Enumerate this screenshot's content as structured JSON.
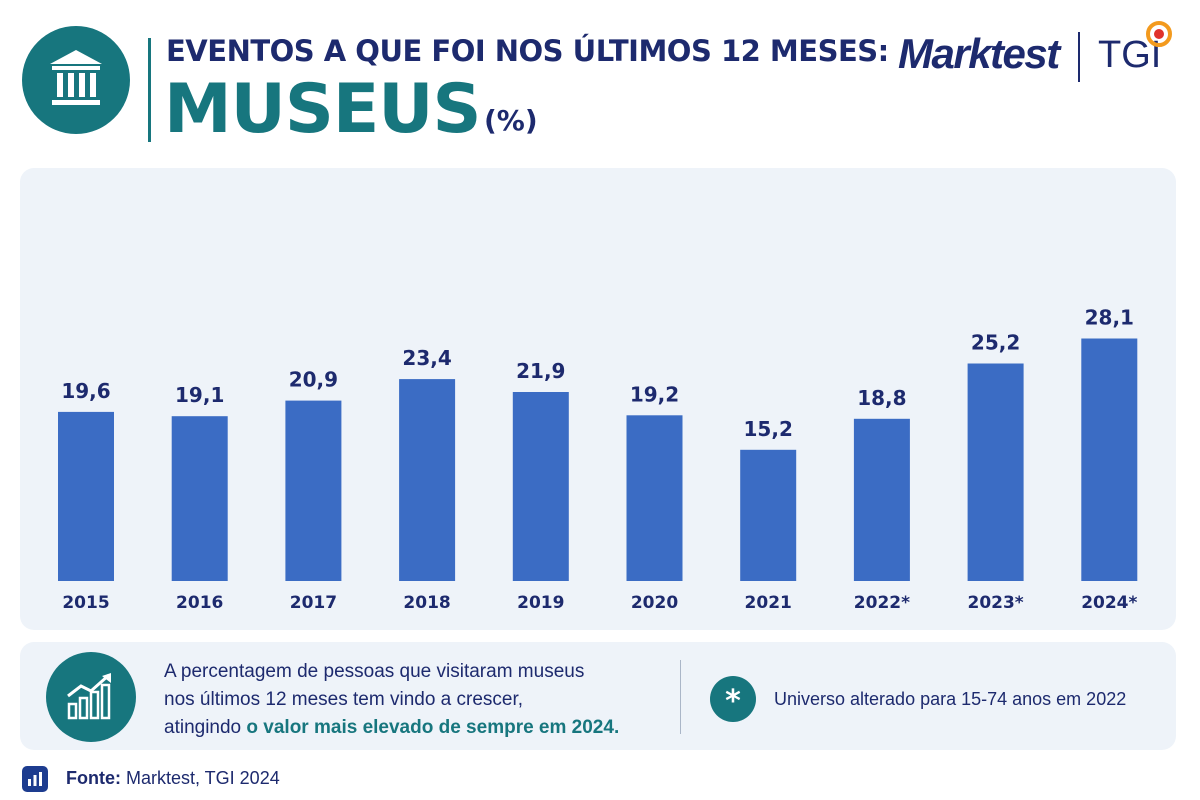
{
  "header": {
    "title_top": "EVENTOS A QUE FOI NOS ÚLTIMOS 12 MESES:",
    "title_main": "MUSEUS",
    "title_unit": "(%)",
    "icon": "museum-icon"
  },
  "brand": {
    "marktest": "Marktest",
    "tgi": "TGI"
  },
  "colors": {
    "bar": "#3b6cc4",
    "teal": "#17767e",
    "navy": "#1d2a6e",
    "panel": "#eef3f9"
  },
  "chart_data": {
    "type": "bar",
    "categories": [
      "2015",
      "2016",
      "2017",
      "2018",
      "2019",
      "2020",
      "2021",
      "2022*",
      "2023*",
      "2024*"
    ],
    "values": [
      19.6,
      19.1,
      20.9,
      23.4,
      21.9,
      19.2,
      15.2,
      18.8,
      25.2,
      28.1
    ],
    "value_labels": [
      "19,6",
      "19,1",
      "20,9",
      "23,4",
      "21,9",
      "19,2",
      "15,2",
      "18,8",
      "25,2",
      "28,1"
    ],
    "ylim": [
      0,
      30
    ],
    "grid": false,
    "unit": "%"
  },
  "insight": {
    "icon": "trend-up-chart-icon",
    "line1": "A percentagem de pessoas que visitaram museus",
    "line2": "nos últimos 12 meses tem vindo a crescer,",
    "line3_prefix": "atingindo ",
    "line3_highlight": "o valor mais elevado de sempre em 2024."
  },
  "note": {
    "symbol": "*",
    "text": "Universo alterado para 15-74 anos em 2022"
  },
  "source": {
    "label": "Fonte:",
    "text": " Marktest, TGI 2024",
    "icon": "bar-chart-icon"
  }
}
